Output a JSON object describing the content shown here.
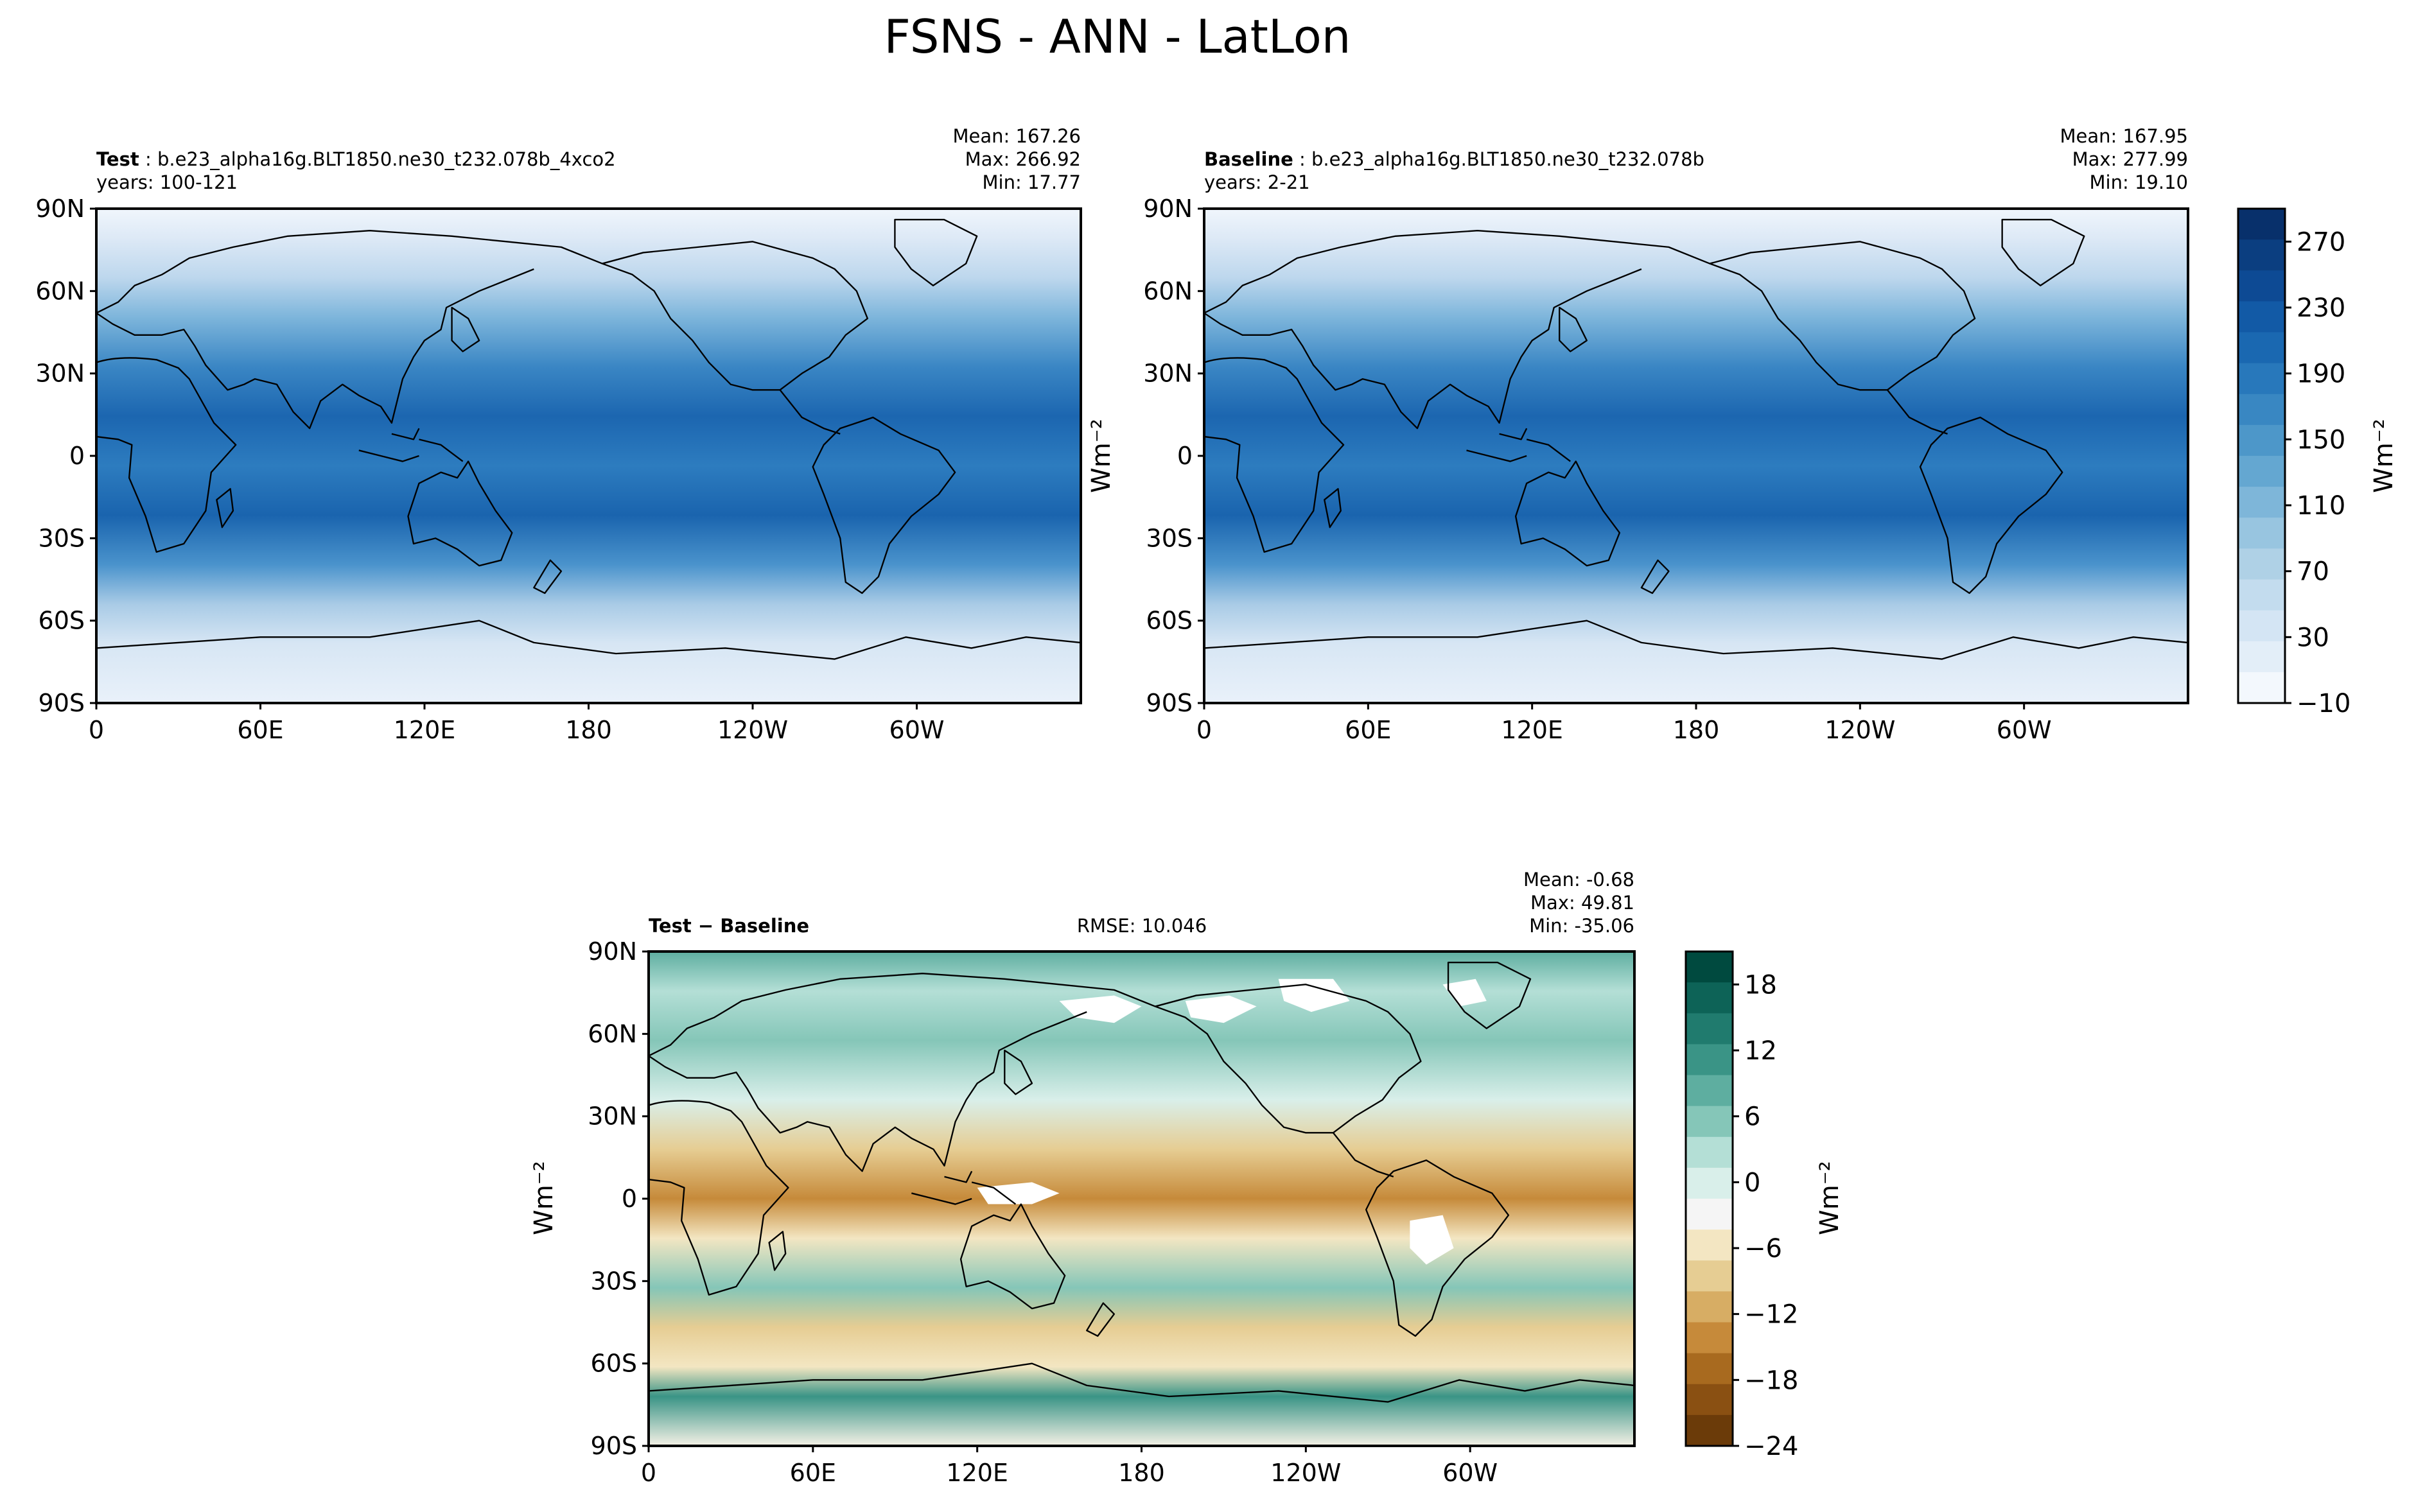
{
  "figure_title": "FSNS - ANN - LatLon",
  "panels": {
    "test": {
      "label_bold": "Test",
      "label_rest": ": b.e23_alpha16g.BLT1850.ne30_t232.078b_4xco2",
      "years": "years: 100-121",
      "mean": "Mean: 167.26",
      "max": "Max: 266.92",
      "min": "Min: 17.77"
    },
    "baseline": {
      "label_bold": "Baseline",
      "label_rest": ": b.e23_alpha16g.BLT1850.ne30_t232.078b",
      "years": "years: 2-21",
      "mean": "Mean: 167.95",
      "max": "Max: 277.99",
      "min": "Min: 19.10"
    },
    "diff": {
      "label_bold": "Test − Baseline",
      "rmse": "RMSE: 10.046",
      "mean": "Mean: -0.68",
      "max": "Max: 49.81",
      "min": "Min: -35.06"
    }
  },
  "axes": {
    "lat_ticks": [
      "90N",
      "60N",
      "30N",
      "0",
      "30S",
      "60S",
      "90S"
    ],
    "lon_ticks": [
      "0",
      "60E",
      "120E",
      "180",
      "120W",
      "60W"
    ],
    "units": "Wm⁻²"
  },
  "chart_data": [
    {
      "type": "heatmap",
      "name": "Test",
      "projection": "PlateCarree",
      "xlim": [
        0,
        360
      ],
      "ylim": [
        -90,
        90
      ],
      "colormap": "Blues",
      "colorbar_range": [
        -10,
        290
      ],
      "colorbar_levels": [
        -10,
        10,
        30,
        50,
        70,
        90,
        110,
        130,
        150,
        170,
        190,
        210,
        230,
        250,
        270,
        290
      ],
      "stats": {
        "mean": 167.26,
        "max": 266.92,
        "min": 17.77
      }
    },
    {
      "type": "heatmap",
      "name": "Baseline",
      "projection": "PlateCarree",
      "xlim": [
        0,
        360
      ],
      "ylim": [
        -90,
        90
      ],
      "colormap": "Blues",
      "colorbar_range": [
        -10,
        290
      ],
      "colorbar_ticks": [
        -10,
        30,
        70,
        110,
        150,
        190,
        230,
        270
      ],
      "stats": {
        "mean": 167.95,
        "max": 277.99,
        "min": 19.1
      }
    },
    {
      "type": "heatmap",
      "name": "Test - Baseline",
      "projection": "PlateCarree",
      "xlim": [
        0,
        360
      ],
      "ylim": [
        -90,
        90
      ],
      "colormap": "BrBG",
      "colorbar_range": [
        -24,
        21
      ],
      "colorbar_ticks": [
        -24,
        -18,
        -12,
        -6,
        0,
        6,
        12,
        18
      ],
      "stats": {
        "mean": -0.68,
        "max": 49.81,
        "min": -35.06,
        "rmse": 10.046
      }
    }
  ],
  "colorbars": {
    "absolute": {
      "ticks": [
        "270",
        "230",
        "190",
        "150",
        "110",
        "70",
        "30",
        "−10"
      ],
      "colors": [
        "#08306b",
        "#0b3e80",
        "#0d4a94",
        "#125aa6",
        "#1a68b1",
        "#2878bb",
        "#3987c2",
        "#4d97c9",
        "#64a7d1",
        "#7eb6d9",
        "#98c5e0",
        "#afd1e6",
        "#c3dcee",
        "#d4e5f4",
        "#e3eef8",
        "#f3f8fd"
      ]
    },
    "difference": {
      "ticks": [
        "18",
        "12",
        "6",
        "0",
        "−6",
        "−12",
        "−18",
        "−24"
      ],
      "colors": [
        "#004a3f",
        "#0d6357",
        "#207b6e",
        "#3a9486",
        "#5eaea0",
        "#85c6b8",
        "#b4dfd6",
        "#d9efea",
        "#f5f5f5",
        "#f3e6c2",
        "#e6cd93",
        "#d7ad64",
        "#c68a3a",
        "#a86a1f",
        "#8a5012",
        "#6b3b09"
      ]
    }
  }
}
